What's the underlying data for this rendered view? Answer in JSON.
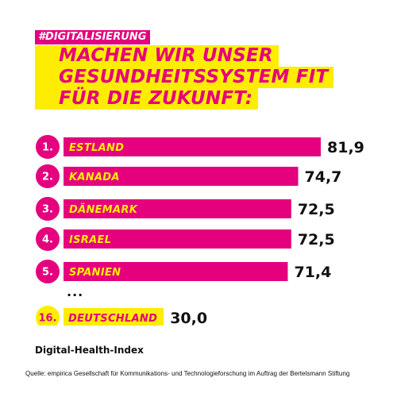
{
  "hashtag": "#DIGITALISIERUNG",
  "headline": [
    "MACHEN WIR UNSER",
    "GESUNDHEITSSYSTEM FIT",
    "FÜR DIE ZUKUNFT:"
  ],
  "ellipsis": "...",
  "index_label": "Digital-Health-Index",
  "source": "Quelle: empirica Gesellschaft für Kommunikations- und Technologieforschung im Auftrag der Bertelsmann Stiftung",
  "colors": {
    "magenta": "#e5007d",
    "yellow": "#ffed00",
    "text": "#111111"
  },
  "chart_data": {
    "type": "bar",
    "orientation": "horizontal",
    "title": "",
    "xlabel": "",
    "ylabel": "",
    "xlim": [
      0,
      100
    ],
    "grid": false,
    "legend": "none",
    "categories": [
      {
        "rank": "1.",
        "name": "ESTLAND",
        "value": 81.9,
        "value_label": "81,9",
        "highlight": false
      },
      {
        "rank": "2.",
        "name": "KANADA",
        "value": 74.7,
        "value_label": "74,7",
        "highlight": false
      },
      {
        "rank": "3.",
        "name": "DÄNEMARK",
        "value": 72.5,
        "value_label": "72,5",
        "highlight": false
      },
      {
        "rank": "4.",
        "name": "ISRAEL",
        "value": 72.5,
        "value_label": "72,5",
        "highlight": false
      },
      {
        "rank": "5.",
        "name": "SPANIEN",
        "value": 71.4,
        "value_label": "71,4",
        "highlight": false
      },
      {
        "rank": "16.",
        "name": "DEUTSCHLAND",
        "value": 30.0,
        "value_label": "30,0",
        "highlight": true
      }
    ]
  }
}
